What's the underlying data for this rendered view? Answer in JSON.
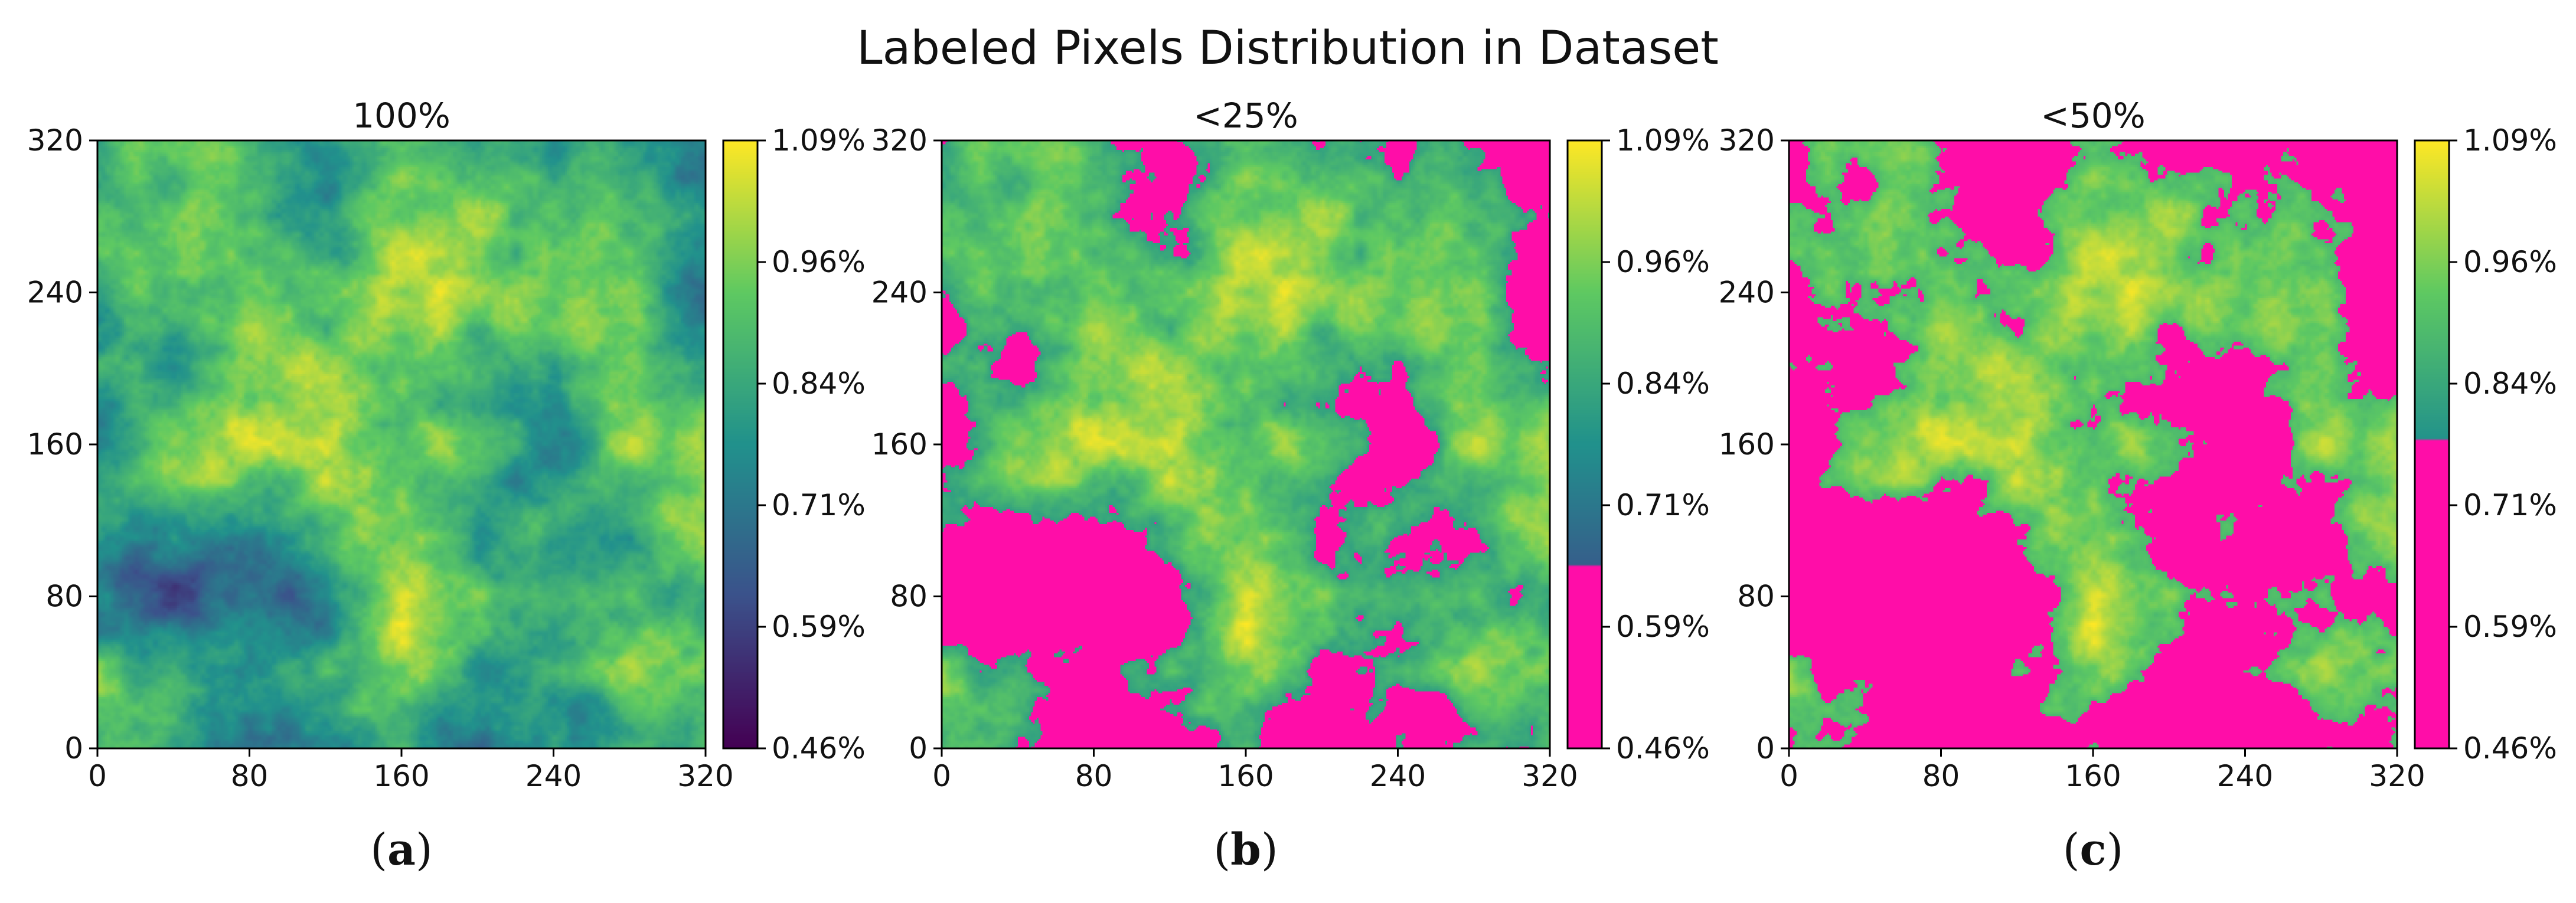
{
  "figure_title": "Labeled Pixels Distribution in Dataset",
  "colors": {
    "mask": "#ff0da8",
    "viridis": [
      "#440154",
      "#3b528b",
      "#21918c",
      "#5ec962",
      "#fde725"
    ],
    "axis": "#000000"
  },
  "chart_data": [
    {
      "type": "heatmap",
      "panel_label": "(a)",
      "title": "100%",
      "x_ticks": [
        0,
        80,
        160,
        240,
        320
      ],
      "y_ticks": [
        0,
        80,
        160,
        240,
        320
      ],
      "xlim": [
        0,
        320
      ],
      "ylim": [
        0,
        320
      ],
      "colorbar": {
        "vmin": 0.46,
        "vmax": 1.09,
        "tick_labels": [
          "0.46%",
          "0.59%",
          "0.71%",
          "0.84%",
          "0.96%",
          "1.09%"
        ],
        "masked_below": null
      },
      "masked_fraction": 0
    },
    {
      "type": "heatmap",
      "panel_label": "(b)",
      "title": "<25%",
      "x_ticks": [
        0,
        80,
        160,
        240,
        320
      ],
      "y_ticks": [
        0,
        80,
        160,
        240,
        320
      ],
      "xlim": [
        0,
        320
      ],
      "ylim": [
        0,
        320
      ],
      "colorbar": {
        "vmin": 0.46,
        "vmax": 1.09,
        "tick_labels": [
          "0.46%",
          "0.59%",
          "0.71%",
          "0.84%",
          "0.96%",
          "1.09%"
        ],
        "masked_below": 0.65
      },
      "masked_fraction": 0.25
    },
    {
      "type": "heatmap",
      "panel_label": "(c)",
      "title": "<50%",
      "x_ticks": [
        0,
        80,
        160,
        240,
        320
      ],
      "y_ticks": [
        0,
        80,
        160,
        240,
        320
      ],
      "xlim": [
        0,
        320
      ],
      "ylim": [
        0,
        320
      ],
      "colorbar": {
        "vmin": 0.46,
        "vmax": 1.09,
        "tick_labels": [
          "0.46%",
          "0.59%",
          "0.71%",
          "0.84%",
          "0.96%",
          "1.09%"
        ],
        "masked_below": 0.78
      },
      "masked_fraction": 0.5
    }
  ]
}
